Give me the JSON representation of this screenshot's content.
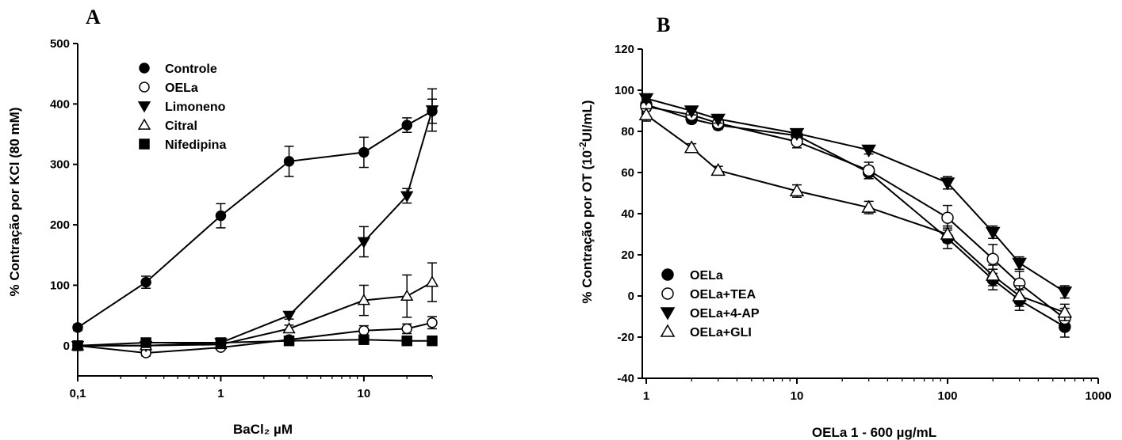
{
  "chart_data": [
    {
      "type": "line",
      "panel_label": "A",
      "xlabel": "BaCl₂ µM",
      "ylabel": "% Contração por KCl (80 mM)",
      "xscale": "log",
      "xlim": [
        0.1,
        30
      ],
      "ylim": [
        -50,
        500
      ],
      "x_ticks": [
        0.1,
        1,
        10
      ],
      "x_tick_labels": [
        "0,1",
        "1",
        "10"
      ],
      "y_ticks": [
        0,
        100,
        200,
        300,
        400,
        500
      ],
      "y_tick_labels": [
        "0",
        "100",
        "200",
        "300",
        "400",
        "500"
      ],
      "legend_position": "top-left",
      "series": [
        {
          "name": "Controle",
          "marker": "circle-filled",
          "x": [
            0.1,
            0.3,
            1,
            3,
            10,
            20,
            30
          ],
          "y": [
            30,
            105,
            215,
            305,
            320,
            365,
            388
          ],
          "err": [
            5,
            10,
            20,
            25,
            25,
            12,
            20
          ]
        },
        {
          "name": "OELa",
          "marker": "circle-open",
          "x": [
            0.1,
            0.3,
            1,
            3,
            10,
            20,
            30
          ],
          "y": [
            0,
            -12,
            -3,
            10,
            25,
            28,
            38
          ],
          "err": [
            3,
            5,
            4,
            4,
            8,
            8,
            10
          ]
        },
        {
          "name": "Limoneno",
          "marker": "triangle-down-filled",
          "x": [
            0.1,
            0.3,
            1,
            3,
            10,
            20,
            30
          ],
          "y": [
            0,
            0,
            5,
            50,
            172,
            248,
            390
          ],
          "err": [
            3,
            3,
            4,
            6,
            25,
            12,
            35
          ]
        },
        {
          "name": "Citral",
          "marker": "triangle-up-open",
          "x": [
            0.1,
            0.3,
            1,
            3,
            10,
            20,
            30
          ],
          "y": [
            0,
            0,
            2,
            28,
            75,
            82,
            105
          ],
          "err": [
            3,
            3,
            4,
            6,
            25,
            35,
            32
          ]
        },
        {
          "name": "Nifedipina",
          "marker": "square-filled",
          "x": [
            0.1,
            0.3,
            1,
            3,
            10,
            20,
            30
          ],
          "y": [
            0,
            5,
            5,
            8,
            10,
            8,
            8
          ],
          "err": [
            3,
            3,
            3,
            3,
            4,
            3,
            3
          ]
        }
      ]
    },
    {
      "type": "line",
      "panel_label": "B",
      "xlabel": "OELa 1 - 600 µg/mL",
      "ylabel_main": "% Contração por  OT (10",
      "ylabel_sup": "-2",
      "ylabel_end": "UI/mL)",
      "xscale": "log",
      "xlim": [
        1,
        1000
      ],
      "ylim": [
        -40,
        120
      ],
      "x_ticks": [
        1,
        10,
        100,
        1000
      ],
      "x_tick_labels": [
        "1",
        "10",
        "100",
        "1000"
      ],
      "y_ticks": [
        -40,
        -20,
        0,
        20,
        40,
        60,
        80,
        100,
        120
      ],
      "y_tick_labels": [
        "-40",
        "-20",
        "0",
        "20",
        "40",
        "60",
        "80",
        "100",
        "120"
      ],
      "legend_position": "bottom-left",
      "series": [
        {
          "name": "OELa",
          "marker": "circle-filled",
          "x": [
            1,
            2,
            3,
            10,
            30,
            100,
            200,
            300,
            600
          ],
          "y": [
            93,
            86,
            83,
            78,
            60,
            28,
            8,
            -2,
            -15
          ],
          "err": [
            2,
            2,
            2,
            2,
            3,
            5,
            5,
            5,
            5
          ]
        },
        {
          "name": "OELa+TEA",
          "marker": "circle-open",
          "x": [
            1,
            2,
            3,
            10,
            30,
            100,
            200,
            300,
            600
          ],
          "y": [
            92,
            88,
            84,
            75,
            61,
            38,
            18,
            6,
            -11
          ],
          "err": [
            2,
            2,
            2,
            3,
            4,
            6,
            7,
            6,
            5
          ]
        },
        {
          "name": "OELa+4-AP",
          "marker": "triangle-down-filled",
          "x": [
            1,
            2,
            3,
            10,
            30,
            100,
            200,
            300,
            600
          ],
          "y": [
            96,
            90,
            86,
            79,
            71,
            55,
            31,
            16,
            2
          ],
          "err": [
            2,
            2,
            2,
            2,
            2,
            3,
            3,
            3,
            3
          ]
        },
        {
          "name": "OELa+GLI",
          "marker": "triangle-up-open",
          "x": [
            1,
            2,
            3,
            10,
            30,
            100,
            200,
            300,
            600
          ],
          "y": [
            88,
            72,
            61,
            51,
            43,
            30,
            10,
            0,
            -8
          ],
          "err": [
            3,
            2,
            2,
            3,
            3,
            4,
            5,
            5,
            4
          ]
        }
      ]
    }
  ]
}
